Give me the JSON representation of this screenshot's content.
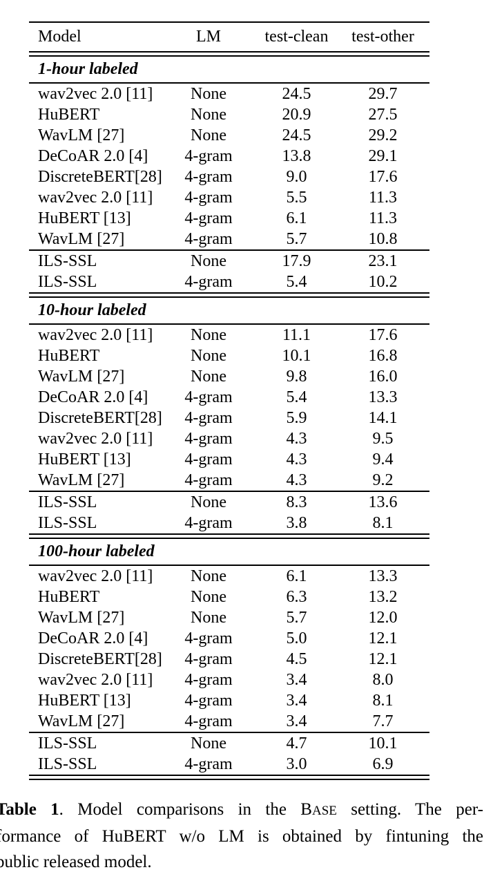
{
  "colors": {
    "background": "#ffffff",
    "text": "#000000",
    "rule": "#000000"
  },
  "table": {
    "columns": [
      "Model",
      "LM",
      "test-clean",
      "test-other"
    ],
    "sections": [
      {
        "label": "1-hour labeled",
        "rows": [
          [
            "wav2vec 2.0 [11]",
            "None",
            "24.5",
            "29.7"
          ],
          [
            "HuBERT",
            "None",
            "20.9",
            "27.5"
          ],
          [
            "WavLM [27]",
            "None",
            "24.5",
            "29.2"
          ],
          [
            "DeCoAR 2.0 [4]",
            "4-gram",
            "13.8",
            "29.1"
          ],
          [
            "DiscreteBERT[28]",
            "4-gram",
            "9.0",
            "17.6"
          ],
          [
            "wav2vec 2.0 [11]",
            "4-gram",
            "5.5",
            "11.3"
          ],
          [
            "HuBERT [13]",
            "4-gram",
            "6.1",
            "11.3"
          ],
          [
            "WavLM [27]",
            "4-gram",
            "5.7",
            "10.8"
          ]
        ],
        "ils_rows": [
          [
            "ILS-SSL",
            "None",
            "17.9",
            "23.1"
          ],
          [
            "ILS-SSL",
            "4-gram",
            "5.4",
            "10.2"
          ]
        ]
      },
      {
        "label": "10-hour labeled",
        "rows": [
          [
            "wav2vec 2.0 [11]",
            "None",
            "11.1",
            "17.6"
          ],
          [
            "HuBERT",
            "None",
            "10.1",
            "16.8"
          ],
          [
            "WavLM [27]",
            "None",
            "9.8",
            "16.0"
          ],
          [
            "DeCoAR 2.0 [4]",
            "4-gram",
            "5.4",
            "13.3"
          ],
          [
            "DiscreteBERT[28]",
            "4-gram",
            "5.9",
            "14.1"
          ],
          [
            "wav2vec 2.0 [11]",
            "4-gram",
            "4.3",
            "9.5"
          ],
          [
            "HuBERT [13]",
            "4-gram",
            "4.3",
            "9.4"
          ],
          [
            "WavLM [27]",
            "4-gram",
            "4.3",
            "9.2"
          ]
        ],
        "ils_rows": [
          [
            "ILS-SSL",
            "None",
            "8.3",
            "13.6"
          ],
          [
            "ILS-SSL",
            "4-gram",
            "3.8",
            "8.1"
          ]
        ]
      },
      {
        "label": "100-hour labeled",
        "rows": [
          [
            "wav2vec 2.0 [11]",
            "None",
            "6.1",
            "13.3"
          ],
          [
            "HuBERT",
            "None",
            "6.3",
            "13.2"
          ],
          [
            "WavLM [27]",
            "None",
            "5.7",
            "12.0"
          ],
          [
            "DeCoAR 2.0 [4]",
            "4-gram",
            "5.0",
            "12.1"
          ],
          [
            "DiscreteBERT[28]",
            "4-gram",
            "4.5",
            "12.1"
          ],
          [
            "wav2vec 2.0 [11]",
            "4-gram",
            "3.4",
            "8.0"
          ],
          [
            "HuBERT [13]",
            "4-gram",
            "3.4",
            "8.1"
          ],
          [
            "WavLM [27]",
            "4-gram",
            "3.4",
            "7.7"
          ]
        ],
        "ils_rows": [
          [
            "ILS-SSL",
            "None",
            "4.7",
            "10.1"
          ],
          [
            "ILS-SSL",
            "4-gram",
            "3.0",
            "6.9"
          ]
        ]
      }
    ]
  },
  "caption": {
    "label": "Table 1",
    "after_label": ". Model comparisons in the ",
    "smallcaps_lead": "B",
    "smallcaps_rest": "ASE",
    "line1_tail": " setting. The per-",
    "line2": "formance of HuBERT w/o LM is obtained by fintuning the",
    "line3": "public released model."
  }
}
